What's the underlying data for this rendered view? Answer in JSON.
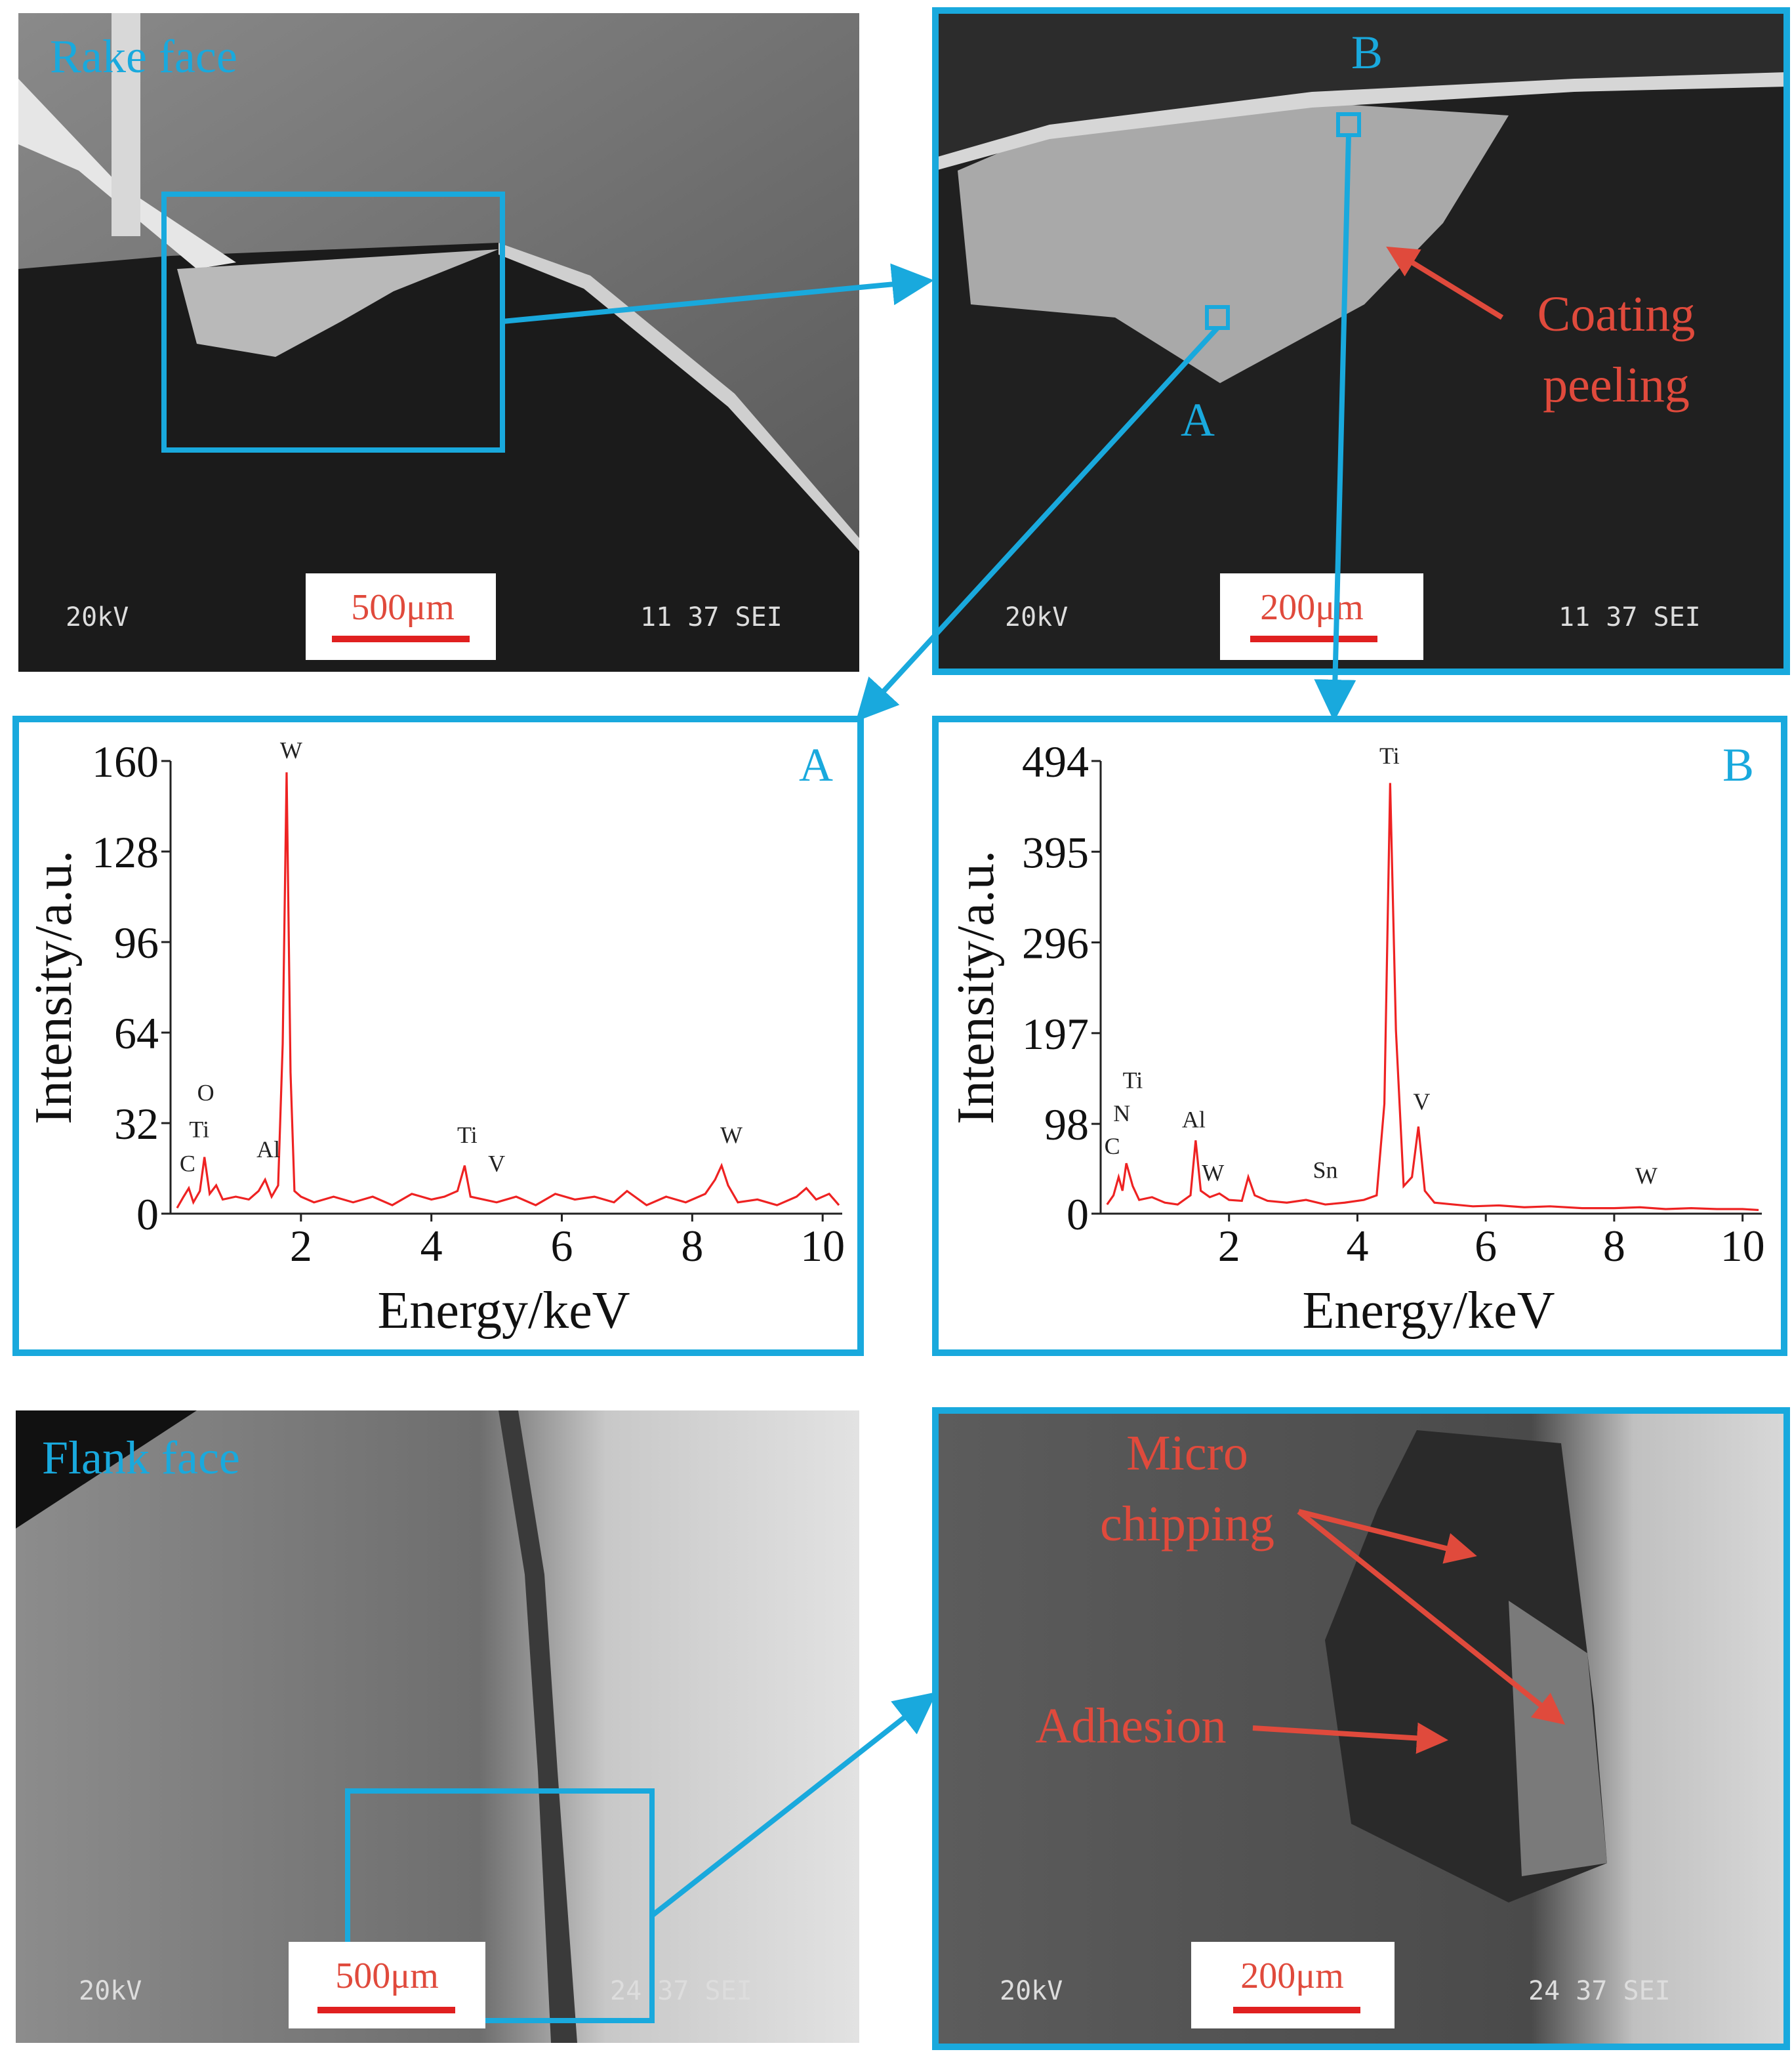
{
  "chart_data": [
    {
      "type": "line",
      "panel_label": "A",
      "x_label": "Energy/keV",
      "y_label": "Intensity/a.u.",
      "color": "#ee2222",
      "xlim": [
        0,
        10.3
      ],
      "xticks": [
        2,
        4,
        6,
        8,
        10
      ],
      "ylim": [
        0,
        160
      ],
      "yticks": [
        0,
        32,
        64,
        96,
        128,
        160
      ],
      "x": [
        0.1,
        0.2,
        0.28,
        0.35,
        0.45,
        0.52,
        0.6,
        0.7,
        0.8,
        1.0,
        1.2,
        1.35,
        1.45,
        1.55,
        1.65,
        1.72,
        1.78,
        1.84,
        1.9,
        2.0,
        2.2,
        2.5,
        2.8,
        3.1,
        3.4,
        3.7,
        4.0,
        4.2,
        4.4,
        4.51,
        4.6,
        4.8,
        5.0,
        5.3,
        5.6,
        5.9,
        6.2,
        6.5,
        6.8,
        7.0,
        7.3,
        7.6,
        7.9,
        8.2,
        8.35,
        8.45,
        8.55,
        8.7,
        9.0,
        9.3,
        9.6,
        9.75,
        9.9,
        10.1,
        10.25
      ],
      "values": [
        2,
        6,
        9,
        4,
        8,
        20,
        7,
        10,
        5,
        6,
        5,
        8,
        12,
        6,
        10,
        60,
        156,
        50,
        8,
        6,
        4,
        6,
        4,
        6,
        3,
        7,
        5,
        6,
        8,
        17,
        6,
        5,
        4,
        6,
        3,
        7,
        5,
        6,
        4,
        8,
        3,
        6,
        4,
        7,
        12,
        17,
        10,
        4,
        5,
        3,
        6,
        9,
        5,
        7,
        3
      ],
      "annotations": [
        {
          "text": "C",
          "x": 0.26,
          "y": 15
        },
        {
          "text": "Ti",
          "x": 0.44,
          "y": 27
        },
        {
          "text": "O",
          "x": 0.54,
          "y": 40
        },
        {
          "text": "Al",
          "x": 1.5,
          "y": 20
        },
        {
          "text": "W",
          "x": 1.85,
          "y": 161
        },
        {
          "text": "Ti",
          "x": 4.55,
          "y": 25
        },
        {
          "text": "V",
          "x": 5.0,
          "y": 15
        },
        {
          "text": "W",
          "x": 8.6,
          "y": 25
        }
      ]
    },
    {
      "type": "line",
      "panel_label": "B",
      "x_label": "Energy/keV",
      "y_label": "Intensity/a.u.",
      "color": "#ee2222",
      "xlim": [
        0,
        10.3
      ],
      "xticks": [
        2,
        4,
        6,
        8,
        10
      ],
      "ylim": [
        0,
        494
      ],
      "yticks": [
        0,
        98,
        197,
        296,
        395,
        494
      ],
      "x": [
        0.1,
        0.2,
        0.28,
        0.34,
        0.4,
        0.5,
        0.6,
        0.8,
        1.0,
        1.2,
        1.4,
        1.48,
        1.56,
        1.7,
        1.85,
        2.0,
        2.2,
        2.3,
        2.4,
        2.6,
        2.9,
        3.2,
        3.5,
        3.8,
        4.1,
        4.3,
        4.42,
        4.51,
        4.6,
        4.72,
        4.85,
        4.95,
        5.05,
        5.2,
        5.5,
        5.8,
        6.2,
        6.6,
        7.0,
        7.5,
        8.0,
        8.4,
        8.8,
        9.2,
        9.6,
        10.0,
        10.25
      ],
      "values": [
        10,
        20,
        40,
        25,
        55,
        30,
        15,
        18,
        12,
        10,
        20,
        80,
        25,
        18,
        22,
        15,
        14,
        40,
        20,
        14,
        12,
        15,
        10,
        12,
        15,
        20,
        120,
        470,
        200,
        30,
        40,
        95,
        25,
        12,
        10,
        8,
        9,
        7,
        8,
        6,
        6,
        7,
        5,
        6,
        5,
        5,
        4
      ],
      "annotations": [
        {
          "text": "C",
          "x": 0.18,
          "y": 65
        },
        {
          "text": "N",
          "x": 0.33,
          "y": 101
        },
        {
          "text": "Ti",
          "x": 0.5,
          "y": 137
        },
        {
          "text": "Al",
          "x": 1.45,
          "y": 94
        },
        {
          "text": "W",
          "x": 1.75,
          "y": 36
        },
        {
          "text": "Sn",
          "x": 3.5,
          "y": 39
        },
        {
          "text": "Ti",
          "x": 4.5,
          "y": 491
        },
        {
          "text": "V",
          "x": 5.0,
          "y": 114
        },
        {
          "text": "W",
          "x": 8.5,
          "y": 33
        }
      ]
    }
  ],
  "images": [
    {
      "label": "Rake face",
      "scale_bar": "500μm",
      "voltage": "20kV",
      "info": "11 37 SEI"
    },
    {
      "point_labels": [
        "B",
        "A"
      ],
      "annotation": [
        "Coating",
        "peeling"
      ],
      "scale_bar": "200μm",
      "voltage": "20kV",
      "info": "11 37 SEI"
    },
    {
      "label": "Flank face",
      "scale_bar": "500μm",
      "voltage": "20kV",
      "info": "24 37 SEI"
    },
    {
      "annotation": [
        "Micro",
        "chipping",
        "Adhesion"
      ],
      "scale_bar": "200μm",
      "voltage": "20kV",
      "info": "24 37 SEI"
    }
  ]
}
